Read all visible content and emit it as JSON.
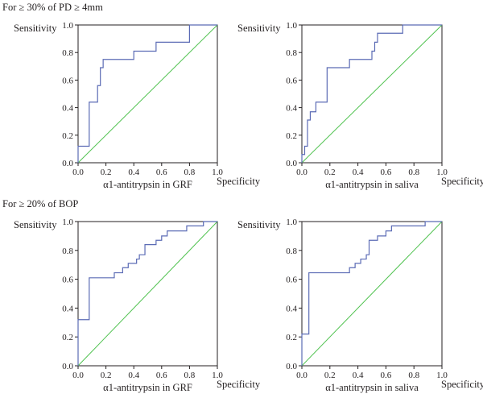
{
  "section_titles": [
    "For ≥ 30% of PD ≥ 4mm",
    "For ≥ 20% of BOP"
  ],
  "chart_data": [
    {
      "type": "line",
      "section": "For ≥ 30% of PD ≥ 4mm",
      "xlabel": "α1-antitrypsin in GRF",
      "ylabel": "Sensitivity",
      "corner_label": "Specificity",
      "xlim": [
        0,
        1
      ],
      "ylim": [
        0,
        1
      ],
      "xticks": [
        "0.0",
        "0.2",
        "0.4",
        "0.6",
        "0.8",
        "1.0"
      ],
      "yticks": [
        "0.0",
        "0.2",
        "0.4",
        "0.6",
        "0.8",
        "1.0"
      ],
      "grid": false,
      "colors": {
        "roc": "#5b6bb5",
        "reference": "#4fc24f"
      },
      "series": [
        {
          "x": [
            0,
            0,
            0.08,
            0.08,
            0.14,
            0.14,
            0.16,
            0.16,
            0.18,
            0.18,
            0.21,
            0.21,
            0.4,
            0.4,
            0.56,
            0.56,
            0.8,
            0.8,
            1.0
          ],
          "y": [
            0,
            0.12,
            0.12,
            0.44,
            0.44,
            0.56,
            0.56,
            0.69,
            0.69,
            0.75,
            0.75,
            0.75,
            0.75,
            0.81,
            0.81,
            0.875,
            0.875,
            1.0,
            1.0
          ]
        }
      ]
    },
    {
      "type": "line",
      "section": "For ≥ 30% of PD ≥ 4mm",
      "xlabel": "α1-antitrypsin in saliva",
      "ylabel": "Sensitivity",
      "corner_label": "Specificity",
      "xlim": [
        0,
        1
      ],
      "ylim": [
        0,
        1
      ],
      "xticks": [
        "0.0",
        "0.2",
        "0.4",
        "0.6",
        "0.8",
        "1.0"
      ],
      "yticks": [
        "0.0",
        "0.2",
        "0.4",
        "0.6",
        "0.8",
        "1.0"
      ],
      "grid": false,
      "colors": {
        "roc": "#5b6bb5",
        "reference": "#4fc24f"
      },
      "series": [
        {
          "x": [
            0,
            0,
            0.02,
            0.02,
            0.04,
            0.04,
            0.06,
            0.06,
            0.1,
            0.1,
            0.14,
            0.14,
            0.18,
            0.18,
            0.34,
            0.34,
            0.44,
            0.44,
            0.5,
            0.5,
            0.52,
            0.52,
            0.54,
            0.54,
            0.72,
            0.72,
            1.0
          ],
          "y": [
            0,
            0.06,
            0.06,
            0.12,
            0.12,
            0.31,
            0.31,
            0.37,
            0.37,
            0.44,
            0.44,
            0.44,
            0.44,
            0.69,
            0.69,
            0.75,
            0.75,
            0.75,
            0.75,
            0.81,
            0.81,
            0.875,
            0.875,
            0.94,
            0.94,
            1.0,
            1.0
          ]
        }
      ]
    },
    {
      "type": "line",
      "section": "For ≥ 20% of BOP",
      "xlabel": "α1-antitrypsin in GRF",
      "ylabel": "Sensitivity",
      "corner_label": "Specificity",
      "xlim": [
        0,
        1
      ],
      "ylim": [
        0,
        1
      ],
      "xticks": [
        "0.0",
        "0.2",
        "0.4",
        "0.6",
        "0.8",
        "1.0"
      ],
      "yticks": [
        "0.0",
        "0.2",
        "0.4",
        "0.6",
        "0.8",
        "1.0"
      ],
      "grid": false,
      "colors": {
        "roc": "#5b6bb5",
        "reference": "#4fc24f"
      },
      "series": [
        {
          "x": [
            0,
            0,
            0.03,
            0.03,
            0.08,
            0.08,
            0.26,
            0.26,
            0.32,
            0.32,
            0.36,
            0.36,
            0.42,
            0.42,
            0.44,
            0.44,
            0.48,
            0.48,
            0.56,
            0.56,
            0.6,
            0.6,
            0.64,
            0.64,
            0.68,
            0.68,
            0.78,
            0.78,
            0.9,
            0.9,
            1.0
          ],
          "y": [
            0,
            0.32,
            0.32,
            0.32,
            0.32,
            0.61,
            0.61,
            0.645,
            0.645,
            0.68,
            0.68,
            0.71,
            0.71,
            0.74,
            0.74,
            0.77,
            0.77,
            0.84,
            0.84,
            0.87,
            0.87,
            0.9,
            0.9,
            0.935,
            0.935,
            0.935,
            0.935,
            0.97,
            0.97,
            1.0,
            1.0
          ]
        }
      ]
    },
    {
      "type": "line",
      "section": "For ≥ 20% of BOP",
      "xlabel": "α1-antitrypsin in saliva",
      "ylabel": "Sensitivity",
      "corner_label": "Specificity",
      "xlim": [
        0,
        1
      ],
      "ylim": [
        0,
        1
      ],
      "xticks": [
        "0.0",
        "0.2",
        "0.4",
        "0.6",
        "0.8",
        "1.0"
      ],
      "yticks": [
        "0.0",
        "0.2",
        "0.4",
        "0.6",
        "0.8",
        "1.0"
      ],
      "grid": false,
      "colors": {
        "roc": "#5b6bb5",
        "reference": "#4fc24f"
      },
      "series": [
        {
          "x": [
            0,
            0,
            0.05,
            0.05,
            0.34,
            0.34,
            0.38,
            0.38,
            0.42,
            0.42,
            0.46,
            0.46,
            0.48,
            0.48,
            0.52,
            0.52,
            0.54,
            0.54,
            0.6,
            0.6,
            0.64,
            0.64,
            0.88,
            0.88,
            1.0
          ],
          "y": [
            0,
            0.22,
            0.22,
            0.645,
            0.645,
            0.68,
            0.68,
            0.71,
            0.71,
            0.74,
            0.74,
            0.77,
            0.77,
            0.87,
            0.87,
            0.87,
            0.87,
            0.9,
            0.9,
            0.935,
            0.935,
            0.97,
            0.97,
            1.0,
            1.0
          ]
        }
      ]
    }
  ]
}
